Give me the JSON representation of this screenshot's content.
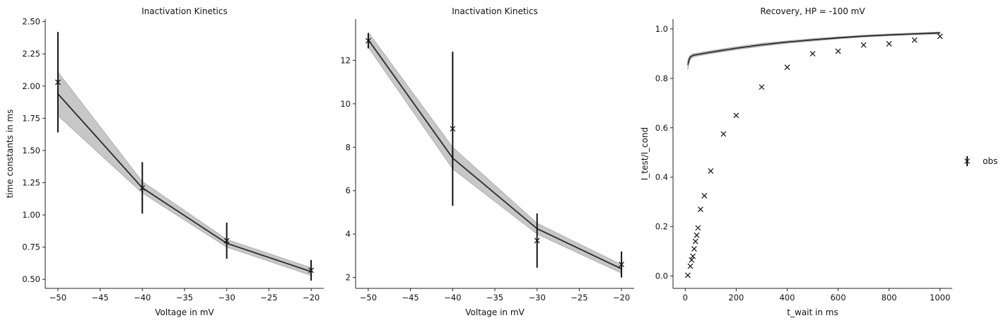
{
  "chart_data": [
    {
      "type": "line",
      "title": "Inactivation Kinetics",
      "xlabel": "Voltage in mV",
      "ylabel": "time constants in ms",
      "xlim": [
        -51.5,
        -18.5
      ],
      "ylim": [
        0.43,
        2.52
      ],
      "xticks": [
        -50,
        -45,
        -40,
        -35,
        -30,
        -25,
        -20
      ],
      "xtick_labels": [
        "−50",
        "−45",
        "−40",
        "−35",
        "−30",
        "−25",
        "−20"
      ],
      "yticks": [
        0.5,
        0.75,
        1.0,
        1.25,
        1.5,
        1.75,
        2.0,
        2.25,
        2.5
      ],
      "ytick_labels": [
        "0.50",
        "0.75",
        "1.00",
        "1.25",
        "1.50",
        "1.75",
        "2.00",
        "2.25",
        "2.50"
      ],
      "series": [
        {
          "kind": "model",
          "x": [
            -50,
            -40,
            -30,
            -20
          ],
          "y": [
            1.94,
            1.21,
            0.78,
            0.56
          ],
          "band_lower": [
            1.77,
            1.17,
            0.75,
            0.53
          ],
          "band_upper": [
            2.11,
            1.26,
            0.81,
            0.59
          ]
        },
        {
          "kind": "observed",
          "x": [
            -50,
            -40,
            -30,
            -20
          ],
          "y": [
            2.03,
            1.21,
            0.8,
            0.57
          ],
          "yerr": [
            0.39,
            0.2,
            0.14,
            0.08
          ]
        }
      ]
    },
    {
      "type": "line",
      "title": "Inactivation Kinetics",
      "xlabel": "Voltage in mV",
      "ylabel": "",
      "xlim": [
        -51.5,
        -18.5
      ],
      "ylim": [
        1.5,
        13.9
      ],
      "xticks": [
        -50,
        -45,
        -40,
        -35,
        -30,
        -25,
        -20
      ],
      "xtick_labels": [
        "−50",
        "−45",
        "−40",
        "−35",
        "−30",
        "−25",
        "−20"
      ],
      "yticks": [
        2,
        4,
        6,
        8,
        10,
        12
      ],
      "ytick_labels": [
        "2",
        "4",
        "6",
        "8",
        "10",
        "12"
      ],
      "series": [
        {
          "kind": "model",
          "x": [
            -50,
            -40,
            -30,
            -20
          ],
          "y": [
            12.95,
            7.5,
            4.25,
            2.4
          ],
          "band_lower": [
            12.6,
            7.0,
            4.0,
            2.2
          ],
          "band_upper": [
            13.3,
            8.0,
            4.5,
            2.6
          ]
        },
        {
          "kind": "observed",
          "x": [
            -50,
            -40,
            -30,
            -20
          ],
          "y": [
            12.9,
            8.85,
            3.7,
            2.6
          ],
          "yerr": [
            0.35,
            3.55,
            1.25,
            0.6
          ]
        }
      ]
    },
    {
      "type": "line",
      "title": "Recovery, HP = -100 mV",
      "xlabel": "t_wait in ms",
      "ylabel": "I_test/I_cond",
      "xlim": [
        -48,
        1048
      ],
      "ylim": [
        -0.05,
        1.04
      ],
      "xticks": [
        0,
        200,
        400,
        600,
        800,
        1000
      ],
      "xtick_labels": [
        "0",
        "200",
        "400",
        "600",
        "800",
        "1000"
      ],
      "yticks": [
        0.0,
        0.2,
        0.4,
        0.6,
        0.8,
        1.0
      ],
      "ytick_labels": [
        "0.0",
        "0.2",
        "0.4",
        "0.6",
        "0.8",
        "1.0"
      ],
      "legend": {
        "placement": "right",
        "entries": [
          "obs"
        ]
      },
      "series": [
        {
          "kind": "model",
          "x": [
            10,
            15,
            20,
            30,
            50,
            100,
            200,
            300,
            400,
            500,
            600,
            700,
            800,
            900,
            1000
          ],
          "y": [
            0.855,
            0.875,
            0.886,
            0.893,
            0.897,
            0.906,
            0.922,
            0.936,
            0.947,
            0.956,
            0.964,
            0.971,
            0.976,
            0.98,
            0.984
          ],
          "band_lower": [
            0.835,
            0.862,
            0.877,
            0.886,
            0.891,
            0.9,
            0.916,
            0.93,
            0.942,
            0.951,
            0.96,
            0.967,
            0.972,
            0.977,
            0.98
          ],
          "band_upper": [
            0.875,
            0.888,
            0.895,
            0.9,
            0.903,
            0.912,
            0.928,
            0.942,
            0.952,
            0.961,
            0.968,
            0.975,
            0.98,
            0.984,
            0.988
          ]
        },
        {
          "kind": "observed",
          "name": "obs",
          "x": [
            10,
            20,
            25,
            30,
            35,
            40,
            45,
            50,
            60,
            75,
            100,
            150,
            200,
            300,
            400,
            500,
            600,
            700,
            800,
            900,
            1000
          ],
          "y": [
            0.003,
            0.04,
            0.065,
            0.08,
            0.11,
            0.14,
            0.165,
            0.195,
            0.27,
            0.325,
            0.425,
            0.575,
            0.65,
            0.765,
            0.845,
            0.9,
            0.91,
            0.935,
            0.94,
            0.955,
            0.97
          ]
        }
      ]
    }
  ]
}
